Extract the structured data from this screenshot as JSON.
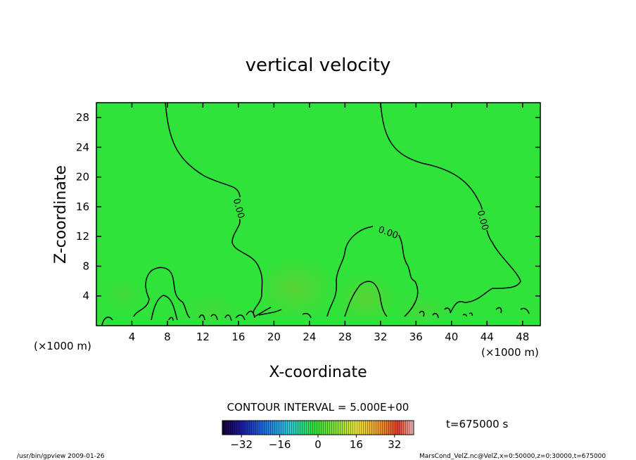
{
  "title": "vertical velocity",
  "footer": {
    "left": "/usr/bin/gpview  2009-01-26",
    "right": "MarsCond_VelZ.nc@VelZ,x=0:50000,z=0:30000,t=675000"
  },
  "contour_interval": "CONTOUR INTERVAL = 5.000E+00",
  "time_label": "t=675000 s",
  "colors": {
    "background_green": "#2fe33a",
    "contour_line": "#000000"
  },
  "chart_data": {
    "type": "heatmap",
    "title": "vertical velocity",
    "xlabel": "X-coordinate",
    "ylabel": "Z-coordinate",
    "x_unit_label": "(×1000 m)",
    "xlim": [
      0,
      50
    ],
    "ylim": [
      0,
      30
    ],
    "x_ticks": [
      4,
      8,
      12,
      16,
      20,
      24,
      28,
      32,
      36,
      40,
      44,
      48
    ],
    "y_ticks": [
      4,
      8,
      12,
      16,
      20,
      24,
      28
    ],
    "contour_labels": [
      {
        "text": "0.00",
        "x": 16.1,
        "z": 15.8
      },
      {
        "text": "0.00",
        "x": 32.9,
        "z": 12.6
      },
      {
        "text": "0.00",
        "x": 43.6,
        "z": 14.2
      }
    ],
    "colorbar": {
      "ticks": [
        "−32",
        "−16",
        "0",
        "16",
        "32"
      ],
      "tick_values": [
        -32,
        -16,
        0,
        16,
        32
      ],
      "range": [
        -40,
        40
      ]
    }
  }
}
